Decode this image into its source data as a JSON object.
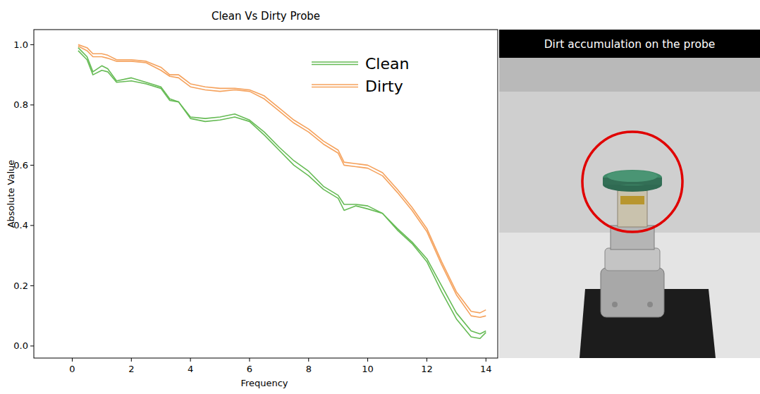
{
  "chart_data": {
    "type": "line",
    "title": "Clean Vs Dirty Probe",
    "x_label": "Frequency",
    "y_label": "Absolute Value",
    "x": [
      0.2,
      0.5,
      0.7,
      1.0,
      1.2,
      1.5,
      2.0,
      2.5,
      3.0,
      3.3,
      3.6,
      4.0,
      4.5,
      5.0,
      5.5,
      6.0,
      6.5,
      7.0,
      7.5,
      8.0,
      8.5,
      9.0,
      9.2,
      9.6,
      10.0,
      10.5,
      11.0,
      11.5,
      12.0,
      12.5,
      13.0,
      13.5,
      13.8,
      14.0
    ],
    "series": [
      {
        "name": "Clean",
        "color": "#66bb55",
        "values": [
          0.99,
          0.96,
          0.91,
          0.93,
          0.92,
          0.88,
          0.89,
          0.875,
          0.86,
          0.82,
          0.81,
          0.76,
          0.755,
          0.76,
          0.77,
          0.75,
          0.71,
          0.66,
          0.615,
          0.58,
          0.53,
          0.5,
          0.47,
          0.47,
          0.465,
          0.44,
          0.39,
          0.345,
          0.29,
          0.2,
          0.11,
          0.05,
          0.04,
          0.05
        ]
      },
      {
        "name": "Clean",
        "color": "#66bb55",
        "values": [
          0.98,
          0.95,
          0.9,
          0.915,
          0.91,
          0.875,
          0.88,
          0.87,
          0.855,
          0.815,
          0.81,
          0.755,
          0.745,
          0.75,
          0.76,
          0.745,
          0.7,
          0.65,
          0.6,
          0.565,
          0.52,
          0.49,
          0.45,
          0.465,
          0.455,
          0.44,
          0.385,
          0.34,
          0.28,
          0.18,
          0.09,
          0.03,
          0.025,
          0.045
        ]
      },
      {
        "name": "Dirty",
        "color": "#f5a25d",
        "values": [
          1.0,
          0.99,
          0.97,
          0.97,
          0.965,
          0.95,
          0.95,
          0.945,
          0.925,
          0.9,
          0.9,
          0.87,
          0.86,
          0.855,
          0.855,
          0.85,
          0.83,
          0.79,
          0.75,
          0.72,
          0.68,
          0.65,
          0.61,
          0.605,
          0.6,
          0.575,
          0.52,
          0.46,
          0.39,
          0.28,
          0.18,
          0.115,
          0.11,
          0.12
        ]
      },
      {
        "name": "Dirty",
        "color": "#f5a25d",
        "values": [
          0.995,
          0.98,
          0.96,
          0.96,
          0.955,
          0.945,
          0.945,
          0.94,
          0.915,
          0.895,
          0.89,
          0.86,
          0.85,
          0.845,
          0.85,
          0.845,
          0.82,
          0.78,
          0.74,
          0.71,
          0.67,
          0.64,
          0.6,
          0.595,
          0.59,
          0.565,
          0.51,
          0.45,
          0.38,
          0.27,
          0.17,
          0.1,
          0.095,
          0.1
        ]
      }
    ],
    "xlim": [
      -1.3,
      14.4
    ],
    "ylim": [
      -0.04,
      1.05
    ],
    "xticks": [
      0,
      2,
      4,
      6,
      8,
      10,
      12,
      14
    ],
    "yticks": [
      {
        "value": 0,
        "label": "0.0"
      },
      0.2,
      0.4,
      0.6,
      0.8,
      {
        "value": 1,
        "label": "1.0"
      }
    ],
    "grid": false,
    "legend": "upper right",
    "photo": {
      "caption": "Dirt accumulation on the probe"
    }
  }
}
